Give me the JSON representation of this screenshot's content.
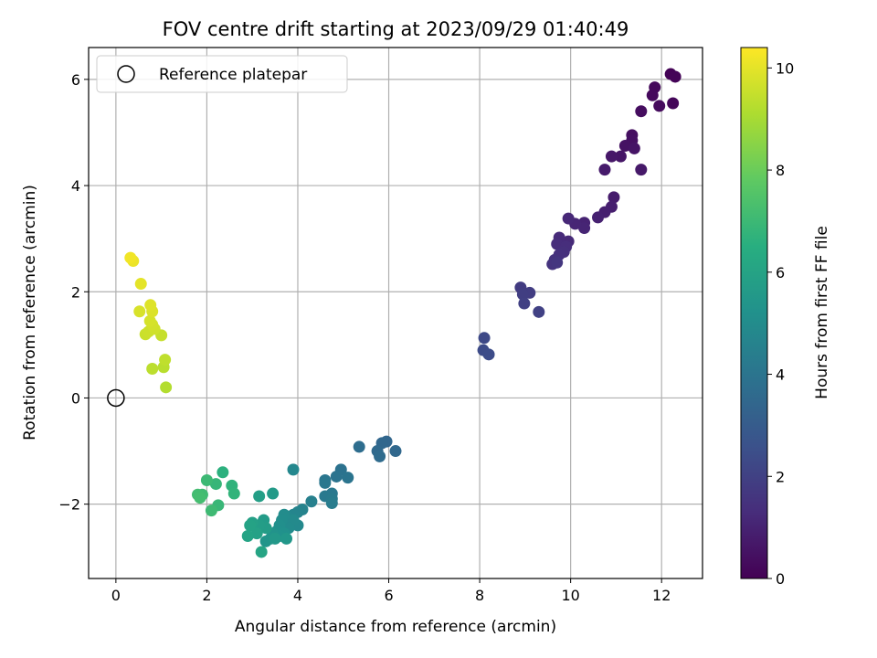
{
  "chart_data": {
    "type": "scatter",
    "title": "FOV centre drift starting at 2023/09/29 01:40:49",
    "xlabel": "Angular distance from reference (arcmin)",
    "ylabel": "Rotation from reference (arcmin)",
    "xlim": [
      -0.6,
      12.9
    ],
    "ylim": [
      -3.4,
      6.6
    ],
    "xticks": [
      0,
      2,
      4,
      6,
      8,
      10,
      12
    ],
    "yticks": [
      -2,
      0,
      2,
      4,
      6
    ],
    "grid": true,
    "legend": {
      "placement": "top-left",
      "entries": [
        "Reference platepar"
      ]
    },
    "reference_point": {
      "x": 0,
      "y": 0,
      "label": "Reference platepar"
    },
    "colorbar": {
      "label": "Hours from first FF file",
      "colormap": "viridis",
      "range": [
        0,
        10.4
      ],
      "ticks": [
        0,
        2,
        4,
        6,
        8,
        10
      ]
    },
    "points": [
      [
        12.2,
        6.1,
        0.05
      ],
      [
        12.3,
        6.05,
        0.1
      ],
      [
        12.25,
        5.55,
        0.15
      ],
      [
        11.85,
        5.85,
        0.2
      ],
      [
        11.8,
        5.7,
        0.25
      ],
      [
        11.95,
        5.5,
        0.3
      ],
      [
        11.55,
        5.4,
        0.35
      ],
      [
        11.35,
        4.95,
        0.4
      ],
      [
        11.35,
        4.85,
        0.45
      ],
      [
        11.2,
        4.75,
        0.5
      ],
      [
        11.4,
        4.7,
        0.55
      ],
      [
        11.1,
        4.55,
        0.6
      ],
      [
        10.9,
        4.55,
        0.65
      ],
      [
        11.55,
        4.3,
        0.7
      ],
      [
        10.75,
        4.3,
        0.75
      ],
      [
        10.95,
        3.78,
        0.8
      ],
      [
        10.9,
        3.6,
        0.85
      ],
      [
        10.75,
        3.5,
        0.9
      ],
      [
        10.6,
        3.4,
        0.95
      ],
      [
        10.3,
        3.3,
        1.0
      ],
      [
        10.3,
        3.2,
        1.05
      ],
      [
        10.1,
        3.28,
        1.1
      ],
      [
        9.95,
        3.38,
        1.15
      ],
      [
        9.95,
        2.95,
        1.2
      ],
      [
        9.75,
        3.02,
        1.25
      ],
      [
        9.7,
        2.9,
        1.3
      ],
      [
        9.9,
        2.85,
        1.35
      ],
      [
        9.85,
        2.75,
        1.4
      ],
      [
        9.75,
        2.7,
        1.45
      ],
      [
        9.65,
        2.6,
        1.5
      ],
      [
        9.6,
        2.52,
        1.55
      ],
      [
        9.7,
        2.55,
        1.6
      ],
      [
        8.9,
        2.08,
        1.8
      ],
      [
        9.1,
        1.98,
        1.85
      ],
      [
        8.95,
        1.95,
        1.9
      ],
      [
        8.98,
        1.78,
        1.95
      ],
      [
        9.3,
        1.62,
        2.0
      ],
      [
        8.1,
        1.13,
        2.3
      ],
      [
        8.08,
        0.9,
        2.35
      ],
      [
        8.2,
        0.82,
        2.4
      ],
      [
        5.95,
        -0.82,
        3.4
      ],
      [
        5.85,
        -0.85,
        3.45
      ],
      [
        6.15,
        -1.0,
        3.5
      ],
      [
        5.75,
        -1.0,
        3.55
      ],
      [
        5.8,
        -1.1,
        3.6
      ],
      [
        5.35,
        -0.92,
        3.7
      ],
      [
        4.95,
        -1.35,
        3.9
      ],
      [
        4.85,
        -1.48,
        3.95
      ],
      [
        5.1,
        -1.5,
        4.0
      ],
      [
        4.6,
        -1.55,
        4.05
      ],
      [
        4.6,
        -1.6,
        4.1
      ],
      [
        4.75,
        -1.8,
        4.15
      ],
      [
        4.6,
        -1.85,
        4.2
      ],
      [
        4.75,
        -1.9,
        4.25
      ],
      [
        4.75,
        -1.98,
        4.3
      ],
      [
        4.3,
        -1.95,
        4.5
      ],
      [
        4.1,
        -2.1,
        4.6
      ],
      [
        4.0,
        -2.15,
        4.65
      ],
      [
        3.9,
        -2.2,
        4.7
      ],
      [
        3.8,
        -2.25,
        4.75
      ],
      [
        3.9,
        -1.35,
        4.8
      ],
      [
        4.0,
        -2.4,
        4.85
      ],
      [
        3.9,
        -2.3,
        4.9
      ],
      [
        3.8,
        -2.45,
        4.95
      ],
      [
        3.7,
        -2.2,
        5.0
      ],
      [
        3.65,
        -2.3,
        5.05
      ],
      [
        3.6,
        -2.4,
        5.1
      ],
      [
        3.55,
        -2.5,
        5.15
      ],
      [
        3.7,
        -2.55,
        5.2
      ],
      [
        3.6,
        -2.6,
        5.25
      ],
      [
        3.45,
        -2.55,
        5.3
      ],
      [
        3.4,
        -2.65,
        5.35
      ],
      [
        3.3,
        -2.7,
        5.4
      ],
      [
        3.75,
        -2.65,
        5.45
      ],
      [
        3.5,
        -2.65,
        5.5
      ],
      [
        3.45,
        -1.8,
        5.6
      ],
      [
        3.25,
        -2.3,
        5.65
      ],
      [
        3.3,
        -2.45,
        5.7
      ],
      [
        3.15,
        -2.4,
        5.75
      ],
      [
        3.15,
        -1.85,
        5.8
      ],
      [
        3.0,
        -2.35,
        5.85
      ],
      [
        3.1,
        -2.55,
        5.9
      ],
      [
        2.95,
        -2.4,
        5.95
      ],
      [
        2.9,
        -2.6,
        6.0
      ],
      [
        3.2,
        -2.9,
        6.05
      ],
      [
        2.35,
        -1.4,
        6.6
      ],
      [
        2.55,
        -1.65,
        6.7
      ],
      [
        2.6,
        -1.8,
        6.75
      ],
      [
        2.2,
        -1.62,
        6.85
      ],
      [
        2.25,
        -2.02,
        6.9
      ],
      [
        2.0,
        -1.55,
        7.0
      ],
      [
        2.1,
        -2.12,
        7.05
      ],
      [
        1.9,
        -1.82,
        7.1
      ],
      [
        1.8,
        -1.82,
        7.15
      ],
      [
        1.85,
        -1.88,
        7.2
      ],
      [
        1.1,
        0.2,
        9.2
      ],
      [
        1.05,
        0.58,
        9.3
      ],
      [
        0.8,
        0.55,
        9.35
      ],
      [
        1.08,
        0.72,
        9.4
      ],
      [
        1.0,
        1.18,
        9.5
      ],
      [
        0.65,
        1.2,
        9.55
      ],
      [
        0.72,
        1.25,
        9.6
      ],
      [
        0.85,
        1.3,
        9.65
      ],
      [
        0.8,
        1.38,
        9.7
      ],
      [
        0.75,
        1.45,
        9.75
      ],
      [
        0.52,
        1.63,
        9.8
      ],
      [
        0.8,
        1.63,
        9.85
      ],
      [
        0.76,
        1.75,
        9.9
      ],
      [
        0.55,
        2.15,
        10.0
      ],
      [
        0.38,
        2.58,
        10.1
      ],
      [
        0.32,
        2.64,
        10.2
      ]
    ]
  }
}
